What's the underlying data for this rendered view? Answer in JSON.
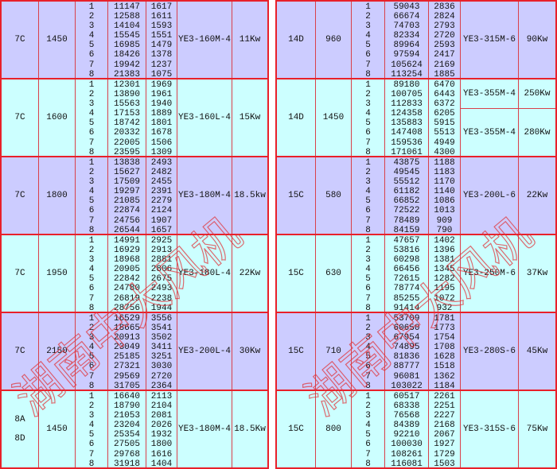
{
  "watermark": "湖南中大风机",
  "colors": {
    "row_a": "#ccccff",
    "row_b": "#ccffff",
    "border": "#e8202a"
  },
  "left_table": [
    {
      "model": "7C",
      "speed": "1450",
      "flow": [
        "11147",
        "12588",
        "14104",
        "15545",
        "16985",
        "18426",
        "19942",
        "21383"
      ],
      "pressure": [
        "1617",
        "1611",
        "1593",
        "1551",
        "1479",
        "1378",
        "1237",
        "1075"
      ],
      "motors": [
        {
          "motor": "YE3-160M-4",
          "power": "11Kw"
        }
      ]
    },
    {
      "model": "7C",
      "speed": "1600",
      "flow": [
        "12301",
        "13890",
        "15563",
        "17153",
        "18742",
        "20332",
        "22005",
        "23595"
      ],
      "pressure": [
        "1969",
        "1961",
        "1940",
        "1889",
        "1801",
        "1678",
        "1506",
        "1309"
      ],
      "motors": [
        {
          "motor": "YE3-160L-4",
          "power": "15Kw"
        }
      ]
    },
    {
      "model": "7C",
      "speed": "1800",
      "flow": [
        "13838",
        "15627",
        "17509",
        "19297",
        "21085",
        "22874",
        "24756",
        "26544"
      ],
      "pressure": [
        "2493",
        "2482",
        "2455",
        "2391",
        "2279",
        "2124",
        "1907",
        "1657"
      ],
      "motors": [
        {
          "motor": "YE3-180M-4",
          "power": "18.5kw"
        }
      ]
    },
    {
      "model": "7C",
      "speed": "1950",
      "flow": [
        "14991",
        "16929",
        "18968",
        "20905",
        "22842",
        "24780",
        "26819",
        "28756"
      ],
      "pressure": [
        "2925",
        "2913",
        "2881",
        "2806",
        "2675",
        "2493",
        "2238",
        "1944"
      ],
      "motors": [
        {
          "motor": "YE3-180L-4",
          "power": "22Kw"
        }
      ]
    },
    {
      "model": "7C",
      "speed": "2150",
      "flow": [
        "16529",
        "18665",
        "20913",
        "23049",
        "25185",
        "27321",
        "29569",
        "31705"
      ],
      "pressure": [
        "3556",
        "3541",
        "3502",
        "3411",
        "3251",
        "3030",
        "2720",
        "2364"
      ],
      "motors": [
        {
          "motor": "YE3-200L-4",
          "power": "30Kw"
        }
      ]
    },
    {
      "model": "8A\n\n8D",
      "model_lines": [
        "8A",
        "8D"
      ],
      "speed": "1450",
      "flow": [
        "16640",
        "18790",
        "21053",
        "23204",
        "25354",
        "27505",
        "29768",
        "31918"
      ],
      "pressure": [
        "2113",
        "2104",
        "2081",
        "2026",
        "1932",
        "1800",
        "1616",
        "1404"
      ],
      "motors": [
        {
          "motor": "YE3-180M-4",
          "power": "18.5Kw"
        }
      ]
    }
  ],
  "right_table": [
    {
      "model": "14D",
      "speed": "960",
      "flow": [
        "59043",
        "66674",
        "74703",
        "82334",
        "89964",
        "97594",
        "105624",
        "113254"
      ],
      "pressure": [
        "2836",
        "2824",
        "2793",
        "2720",
        "2593",
        "2417",
        "2169",
        "1885"
      ],
      "motors": [
        {
          "motor": "YE3-315M-6",
          "power": "90Kw"
        }
      ]
    },
    {
      "model": "14D",
      "speed": "1450",
      "flow": [
        "89180",
        "100705",
        "112833",
        "124358",
        "135883",
        "147408",
        "159536",
        "171061"
      ],
      "pressure": [
        "6470",
        "6443",
        "6372",
        "6205",
        "5915",
        "5513",
        "4949",
        "4300"
      ],
      "motors": [
        {
          "motor": "YE3-355M-4",
          "power": "250Kw",
          "rows": 3
        },
        {
          "motor": "YE3-355M-4",
          "power": "280Kw",
          "rows": 5
        }
      ]
    },
    {
      "model": "15C",
      "speed": "580",
      "flow": [
        "43875",
        "49545",
        "55512",
        "61182",
        "66852",
        "72522",
        "78489",
        "84159"
      ],
      "pressure": [
        "1188",
        "1183",
        "1170",
        "1140",
        "1086",
        "1013",
        "909",
        "790"
      ],
      "motors": [
        {
          "motor": "YE3-200L-6",
          "power": "22Kw"
        }
      ]
    },
    {
      "model": "15C",
      "speed": "630",
      "flow": [
        "47657",
        "53816",
        "60298",
        "66456",
        "72615",
        "78774",
        "85255",
        "91414"
      ],
      "pressure": [
        "1402",
        "1396",
        "1381",
        "1345",
        "1282",
        "1195",
        "1072",
        "932"
      ],
      "motors": [
        {
          "motor": "YE3-250M-6",
          "power": "37Kw"
        }
      ]
    },
    {
      "model": "15C",
      "speed": "710",
      "flow": [
        "53709",
        "60650",
        "67954",
        "74895",
        "81836",
        "88777",
        "96081",
        "103022"
      ],
      "pressure": [
        "1781",
        "1773",
        "1754",
        "1708",
        "1628",
        "1518",
        "1362",
        "1184"
      ],
      "motors": [
        {
          "motor": "YE3-280S-6",
          "power": "45Kw"
        }
      ]
    },
    {
      "model": "15C",
      "speed": "800",
      "flow": [
        "60517",
        "68338",
        "76568",
        "84389",
        "92210",
        "100030",
        "108261",
        "116081"
      ],
      "pressure": [
        "2261",
        "2251",
        "2227",
        "2168",
        "2067",
        "1927",
        "1729",
        "1503"
      ],
      "motors": [
        {
          "motor": "YE3-315S-6",
          "power": "75Kw"
        }
      ]
    }
  ],
  "positions": [
    "1",
    "2",
    "3",
    "4",
    "5",
    "6",
    "7",
    "8"
  ]
}
